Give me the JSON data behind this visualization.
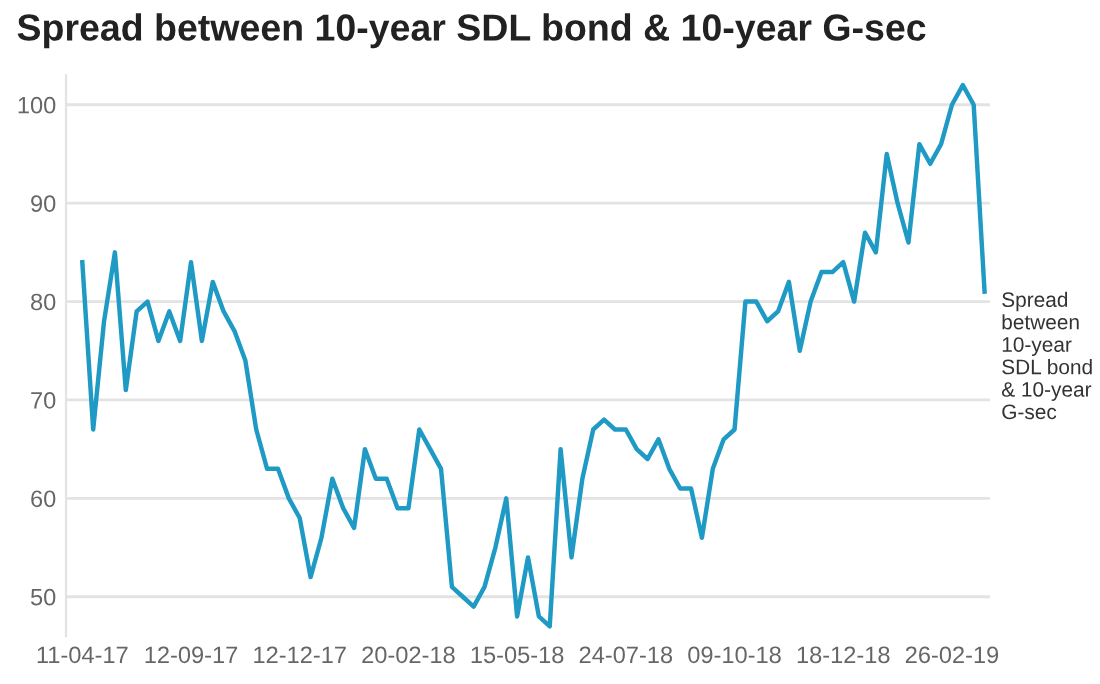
{
  "chart_data": {
    "type": "line",
    "title": "Spread between 10-year SDL bond & 10-year G-sec",
    "categories": [
      "11-04-17",
      null,
      null,
      null,
      null,
      null,
      null,
      null,
      null,
      null,
      "12-09-17",
      null,
      null,
      null,
      null,
      null,
      null,
      null,
      null,
      null,
      "12-12-17",
      null,
      null,
      null,
      null,
      null,
      null,
      null,
      null,
      null,
      "20-02-18",
      null,
      null,
      null,
      null,
      null,
      null,
      null,
      null,
      null,
      "15-05-18",
      null,
      null,
      null,
      null,
      null,
      null,
      null,
      null,
      null,
      "24-07-18",
      null,
      null,
      null,
      null,
      null,
      null,
      null,
      null,
      null,
      "09-10-18",
      null,
      null,
      null,
      null,
      null,
      null,
      null,
      null,
      null,
      "18-12-18",
      null,
      null,
      null,
      null,
      null,
      null,
      null,
      null,
      null,
      "26-02-19",
      null,
      null,
      null
    ],
    "series": [
      {
        "name": "Spread between 10-year SDL bond & 10-year G-sec",
        "color": "#1f9ac4",
        "values": [
          84,
          67,
          78,
          85,
          71,
          79,
          80,
          76,
          79,
          76,
          84,
          76,
          82,
          79,
          77,
          74,
          67,
          63,
          63,
          60,
          58,
          52,
          56,
          62,
          59,
          57,
          65,
          62,
          62,
          59,
          59,
          67,
          65,
          63,
          51,
          50,
          49,
          51,
          55,
          60,
          48,
          54,
          48,
          47,
          65,
          54,
          62,
          67,
          68,
          67,
          67,
          65,
          64,
          66,
          63,
          61,
          61,
          56,
          63,
          66,
          67,
          80,
          80,
          78,
          79,
          82,
          75,
          80,
          83,
          83,
          84,
          80,
          87,
          85,
          95,
          90,
          86,
          96,
          94,
          96,
          100,
          102,
          100,
          81
        ]
      }
    ],
    "ylim": [
      46,
      103
    ],
    "yticks": [
      50,
      60,
      70,
      80,
      90,
      100
    ],
    "grid": "y",
    "legend": false,
    "marker": "none",
    "line_style": "solid"
  }
}
